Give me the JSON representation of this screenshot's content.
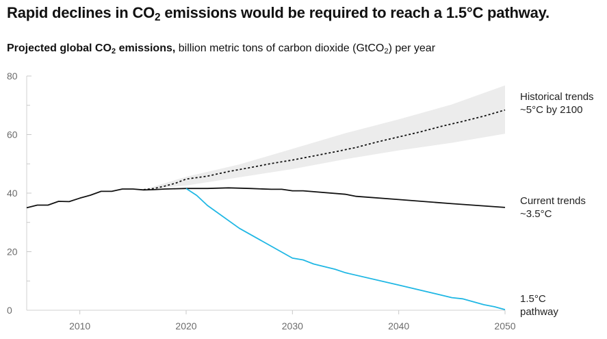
{
  "heading": {
    "before": "Rapid declines in CO",
    "sub": "2",
    "after": " emissions would be required to reach a 1.5°C pathway."
  },
  "subheading": {
    "bold_before": "Projected global CO",
    "bold_sub": "2",
    "bold_after": " emissions,",
    "rest_before": " billion metric tons of carbon dioxide (GtCO",
    "rest_sub": "2",
    "rest_after": ") per year"
  },
  "chart_data": {
    "type": "line",
    "title": "Rapid declines in CO2 emissions would be required to reach a 1.5°C pathway.",
    "subtitle": "Projected global CO2 emissions, billion metric tons of carbon dioxide (GtCO2) per year",
    "xlabel": "",
    "ylabel": "",
    "xlim": [
      2005,
      2050
    ],
    "ylim": [
      0,
      80
    ],
    "x_ticks": [
      2010,
      2020,
      2030,
      2040,
      2050
    ],
    "y_ticks": [
      0,
      20,
      40,
      60,
      80
    ],
    "grid": false,
    "series": [
      {
        "name": "Historical trends",
        "label_lines": [
          "Historical trends",
          "~5°C by 2100"
        ],
        "color": "#111111",
        "style": "dotted",
        "x": [
          2016,
          2017,
          2018,
          2019,
          2020,
          2022,
          2024,
          2026,
          2028,
          2030,
          2032,
          2034,
          2036,
          2038,
          2040,
          2042,
          2044,
          2046,
          2048,
          2050
        ],
        "values": [
          41.2,
          41.6,
          42.4,
          43.4,
          44.8,
          45.8,
          47.4,
          48.7,
          50.1,
          51.3,
          52.7,
          54.1,
          55.6,
          57.5,
          59.2,
          60.9,
          62.8,
          64.5,
          66.3,
          68.4
        ]
      },
      {
        "name": "Historical trends range",
        "color": "#ececec",
        "style": "band",
        "x": [
          2016,
          2020,
          2025,
          2030,
          2035,
          2040,
          2045,
          2050
        ],
        "low": [
          41.2,
          42.6,
          45.4,
          48.2,
          51.6,
          54.6,
          57.2,
          60.3
        ],
        "high": [
          41.2,
          45.6,
          49.8,
          55.1,
          60.5,
          65.2,
          70.3,
          76.8
        ]
      },
      {
        "name": "Current trends",
        "label_lines": [
          "Current trends",
          "~3.5°C"
        ],
        "color": "#111111",
        "style": "solid",
        "x": [
          2005,
          2006,
          2007,
          2008,
          2009,
          2010,
          2011,
          2012,
          2013,
          2014,
          2015,
          2016,
          2017,
          2018,
          2019,
          2020,
          2022,
          2024,
          2026,
          2028,
          2029,
          2030,
          2031,
          2035,
          2036,
          2040,
          2045,
          2050
        ],
        "values": [
          35.0,
          35.9,
          35.9,
          37.2,
          37.1,
          38.3,
          39.3,
          40.6,
          40.6,
          41.4,
          41.4,
          41.1,
          41.2,
          41.4,
          41.5,
          41.6,
          41.6,
          41.8,
          41.6,
          41.3,
          41.3,
          40.8,
          40.8,
          39.6,
          38.9,
          37.8,
          36.4,
          35.1
        ]
      },
      {
        "name": "1.5°C pathway",
        "label_lines": [
          "1.5°C",
          "pathway"
        ],
        "color": "#1fb7e4",
        "style": "solid",
        "x": [
          2020,
          2021,
          2022,
          2025,
          2030,
          2031,
          2032,
          2034,
          2035,
          2040,
          2045,
          2046,
          2048,
          2049,
          2050
        ],
        "values": [
          41.6,
          39.2,
          35.8,
          28.0,
          17.8,
          17.2,
          15.8,
          14.0,
          12.8,
          8.6,
          4.3,
          3.9,
          1.9,
          1.2,
          0.2
        ]
      }
    ]
  }
}
